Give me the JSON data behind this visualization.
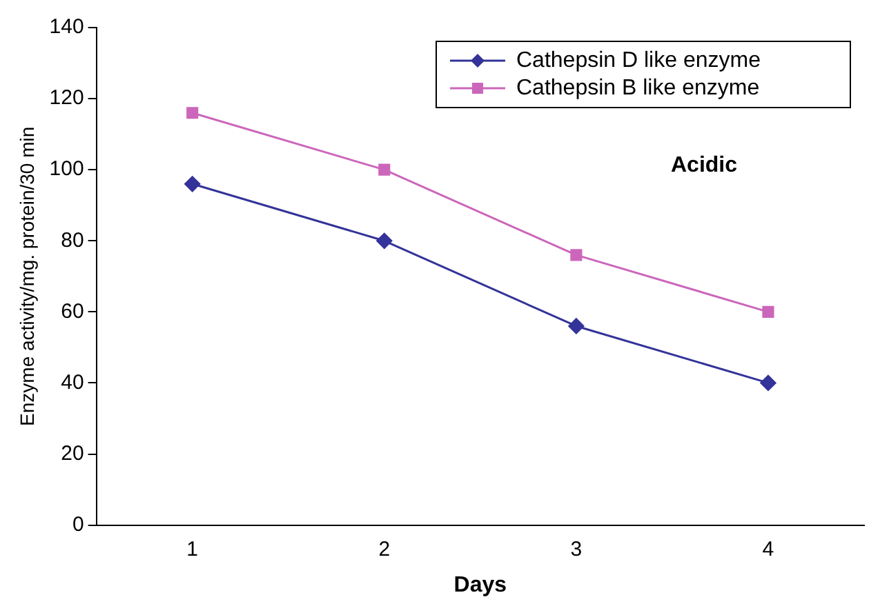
{
  "chart_data": {
    "type": "line",
    "xlabel": "Days",
    "ylabel": "Enzyme activity/mg. protein/30 min",
    "categories": [
      "1",
      "2",
      "3",
      "4"
    ],
    "ylim": [
      0,
      140
    ],
    "yticks": [
      0,
      20,
      40,
      60,
      80,
      100,
      120,
      140
    ],
    "grid": false,
    "legend": "top right",
    "annotations": [
      "Acidic"
    ],
    "series": [
      {
        "name": "Cathepsin D like enzyme",
        "color": "#333399",
        "marker": "diamond",
        "values": [
          96,
          80,
          56,
          40
        ]
      },
      {
        "name": "Cathepsin B like enzyme",
        "color": "#cc66bb",
        "marker": "square",
        "values": [
          116,
          100,
          76,
          60
        ]
      }
    ]
  }
}
